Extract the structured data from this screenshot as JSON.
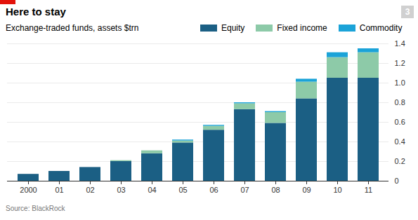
{
  "chart_data": {
    "type": "bar",
    "title": "Here to stay",
    "subtitle": "Exchange-traded funds, assets $trn",
    "figure_number": "3",
    "source": "Source: BlackRock",
    "stacked": true,
    "grid": true,
    "legend": "top",
    "categories": [
      "2000",
      "01",
      "02",
      "03",
      "04",
      "05",
      "06",
      "07",
      "08",
      "09",
      "10",
      "11"
    ],
    "series": [
      {
        "name": "Equity",
        "color": "#1b5f84",
        "values": [
          0.07,
          0.1,
          0.14,
          0.2,
          0.28,
          0.39,
          0.52,
          0.73,
          0.59,
          0.84,
          1.05,
          1.05
        ]
      },
      {
        "name": "Fixed income",
        "color": "#8dcaa8",
        "values": [
          0,
          0,
          0,
          0.01,
          0.03,
          0.02,
          0.04,
          0.06,
          0.11,
          0.17,
          0.21,
          0.26
        ]
      },
      {
        "name": "Commodity",
        "color": "#1ba3d8",
        "values": [
          0,
          0,
          0,
          0,
          0,
          0.01,
          0.01,
          0.01,
          0.01,
          0.03,
          0.05,
          0.04
        ]
      }
    ],
    "ylim": [
      0,
      1.4
    ],
    "yticks": [
      0,
      0.2,
      0.4,
      0.6,
      0.8,
      {
        "value": 1,
        "label": "1.0"
      },
      1.2,
      1.4
    ]
  }
}
